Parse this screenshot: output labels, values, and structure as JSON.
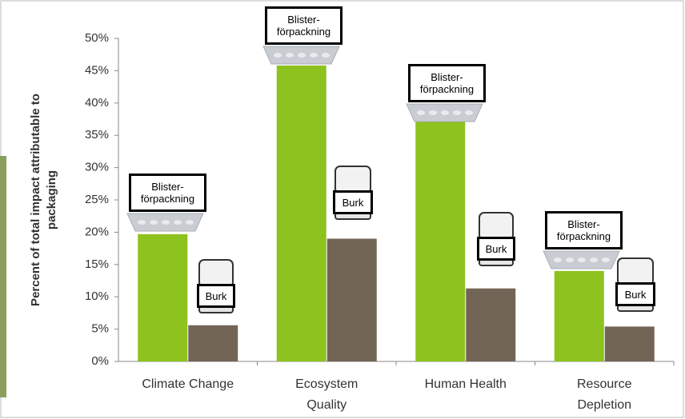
{
  "chart_data": {
    "type": "bar",
    "y_label": "Percent of total impact attributable to\npackaging",
    "categories": [
      "Climate Change",
      "Ecosystem\nQuality",
      "Human Health",
      "Resource\nDepletion"
    ],
    "series": [
      {
        "color": "#8dc21f",
        "values": [
          19.7,
          45.8,
          37.2,
          14.0
        ]
      },
      {
        "color": "#736556",
        "values": [
          5.6,
          19.0,
          11.3,
          5.4
        ]
      }
    ],
    "ylim": [
      0,
      50
    ],
    "yticks": [
      {
        "value": 0,
        "label": "0%"
      },
      {
        "value": 5,
        "label": "5%"
      },
      {
        "value": 10,
        "label": "10%"
      },
      {
        "value": 15,
        "label": "15%"
      },
      {
        "value": 20,
        "label": "20%"
      },
      {
        "value": 25,
        "label": "25%"
      },
      {
        "value": 30,
        "label": "30%"
      },
      {
        "value": 35,
        "label": "35%"
      },
      {
        "value": 40,
        "label": "40%"
      },
      {
        "value": 45,
        "label": "45%"
      },
      {
        "value": 50,
        "label": "50%"
      }
    ],
    "annotations": [
      {
        "text": "Blister-\nförpackning"
      },
      {
        "text": "Burk"
      },
      {
        "text": "Blister-\nförpackning"
      },
      {
        "text": "Burk"
      },
      {
        "text": "Blister-\nförpackning"
      },
      {
        "text": "Burk"
      },
      {
        "text": "Blister-\nförpackning"
      },
      {
        "text": "Burk"
      }
    ]
  }
}
